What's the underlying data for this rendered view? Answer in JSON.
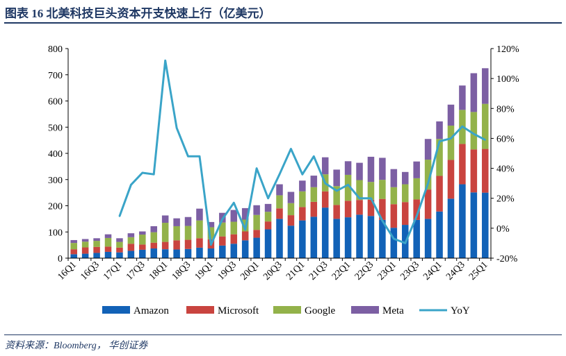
{
  "header": {
    "title": "图表 16  北美科技巨头资本开支快速上行（亿美元）"
  },
  "footer": {
    "source": "资料来源：Bloomberg， 华创证券"
  },
  "chart_data": {
    "type": "bar",
    "stacked": true,
    "title": "北美科技巨头资本开支快速上行（亿美元）",
    "categories": [
      "16Q1",
      "16Q2",
      "16Q3",
      "16Q4",
      "17Q1",
      "17Q2",
      "17Q3",
      "17Q4",
      "18Q1",
      "18Q2",
      "18Q3",
      "18Q4",
      "19Q1",
      "19Q2",
      "19Q3",
      "19Q4",
      "20Q1",
      "20Q2",
      "20Q3",
      "20Q4",
      "21Q1",
      "21Q2",
      "21Q3",
      "21Q4",
      "22Q1",
      "22Q2",
      "22Q3",
      "22Q4",
      "23Q1",
      "23Q2",
      "23Q3",
      "23Q4",
      "24Q1",
      "24Q2",
      "24Q3",
      "24Q4",
      "25Q1"
    ],
    "x_tick_labels": [
      "16Q1",
      "16Q3",
      "17Q1",
      "17Q3",
      "18Q1",
      "18Q3",
      "19Q1",
      "19Q3",
      "20Q1",
      "20Q3",
      "21Q1",
      "21Q3",
      "22Q1",
      "22Q3",
      "23Q1",
      "23Q3",
      "24Q1",
      "24Q3",
      "25Q1"
    ],
    "series": [
      {
        "name": "Amazon",
        "color": "#1262b7",
        "values": [
          15,
          17,
          20,
          24,
          22,
          28,
          32,
          37,
          34,
          33,
          35,
          40,
          37,
          48,
          55,
          68,
          78,
          110,
          150,
          124,
          144,
          158,
          193,
          150,
          156,
          166,
          161,
          146,
          116,
          127,
          146,
          150,
          178,
          227,
          282,
          251,
          250
        ]
      },
      {
        "name": "Microsoft",
        "color": "#c9443f",
        "values": [
          19,
          24,
          23,
          20,
          18,
          27,
          20,
          22,
          28,
          35,
          35,
          36,
          35,
          35,
          36,
          34,
          30,
          30,
          40,
          40,
          51,
          57,
          62,
          53,
          63,
          56,
          62,
          80,
          90,
          87,
          78,
          112,
          136,
          148,
          154,
          164,
          167
        ]
      },
      {
        "name": "Google",
        "color": "#93b24a",
        "values": [
          24,
          22,
          23,
          33,
          22,
          25,
          38,
          40,
          73,
          54,
          53,
          68,
          46,
          53,
          48,
          45,
          57,
          37,
          50,
          46,
          60,
          56,
          65,
          72,
          99,
          76,
          68,
          73,
          65,
          68,
          81,
          114,
          141,
          131,
          130,
          143,
          172
        ]
      },
      {
        "name": "Meta",
        "color": "#7c5fa3",
        "values": [
          11,
          10,
          10,
          14,
          14,
          15,
          12,
          23,
          28,
          30,
          34,
          45,
          20,
          37,
          45,
          44,
          37,
          30,
          42,
          43,
          41,
          44,
          65,
          63,
          52,
          66,
          96,
          84,
          69,
          47,
          64,
          79,
          67,
          80,
          93,
          148,
          136
        ]
      }
    ],
    "line": {
      "name": "YoY",
      "color": "#3aa4c8",
      "axis": "right",
      "values": [
        null,
        null,
        null,
        null,
        8,
        29,
        37,
        36,
        112,
        67,
        48,
        48,
        -11,
        6,
        17,
        -1,
        40,
        20,
        36,
        53,
        36,
        48,
        30,
        25,
        29,
        20,
        20,
        5,
        -7,
        -10,
        8,
        30,
        58,
        60,
        68,
        63,
        59
      ]
    },
    "xlabel": "",
    "ylabel": "",
    "ylim": [
      0,
      800
    ],
    "y_ticks": [
      0,
      100,
      200,
      300,
      400,
      500,
      600,
      700,
      800
    ],
    "y2lim": [
      -20,
      120
    ],
    "y2_ticks": [
      "-20%",
      "0%",
      "20%",
      "40%",
      "60%",
      "80%",
      "100%",
      "120%"
    ],
    "legend": [
      "Amazon",
      "Microsoft",
      "Google",
      "Meta",
      "YoY"
    ],
    "legend_position": "bottom"
  }
}
